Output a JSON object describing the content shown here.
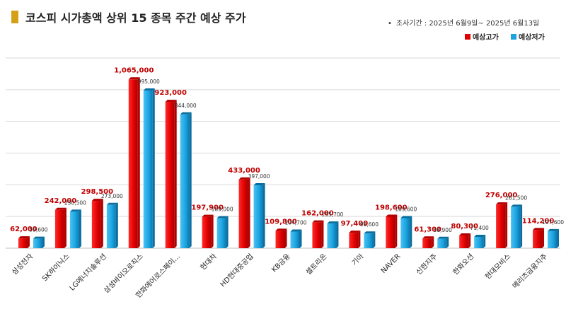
{
  "header": {
    "title": "코스피 시가총액 상위 15 종목 주간 예상 주가",
    "period_bullet": "•",
    "period": "조사기간 : 2025년 6월9일~ 2025년 6월13일"
  },
  "colors": {
    "high": "#e00000",
    "low": "#1aa3e0",
    "title_marker": "#d4a017",
    "grid": "#d9d9d9"
  },
  "chart_data": {
    "type": "bar",
    "title": "코스피 시가총액 상위 15 종목 주간 예상 주가",
    "categories": [
      "삼성전자",
      "SK하이닉스",
      "LG에너지솔루션",
      "삼성바이오로직스",
      "한화에어로스페이...",
      "현대차",
      "HD현대중공업",
      "KB금융",
      "셀트리온",
      "기아",
      "NAVER",
      "신한지주",
      "한화오션",
      "현대모비스",
      "메리츠금융지주"
    ],
    "series": [
      {
        "name": "예상고가",
        "values": [
          62000,
          242000,
          298500,
          1065000,
          923000,
          197900,
          433000,
          109800,
          162000,
          97400,
          198600,
          61300,
          80300,
          276000,
          114200
        ],
        "labels": [
          "62,000",
          "242,000",
          "298,500",
          "1,065,000",
          "923,000",
          "197,900",
          "433,000",
          "109,800",
          "162,000",
          "97,400",
          "198,600",
          "61,300",
          "80,300",
          "276,000",
          "114,200"
        ]
      },
      {
        "name": "예상저가",
        "values": [
          59600,
          230500,
          273000,
          995000,
          844000,
          189000,
          397000,
          104700,
          155700,
          92600,
          189600,
          58900,
          71400,
          261500,
          107600
        ],
        "labels": [
          "59,600",
          "230,500",
          "273,000",
          "995,000",
          "844,000",
          "189,000",
          "397,000",
          "104,700",
          "155,700",
          "92,600",
          "189,600",
          "58,900",
          "71,400",
          "261,500",
          "107,600"
        ]
      }
    ],
    "ylim": [
      0,
      1200000
    ],
    "grid": true,
    "legend": "top-right"
  }
}
